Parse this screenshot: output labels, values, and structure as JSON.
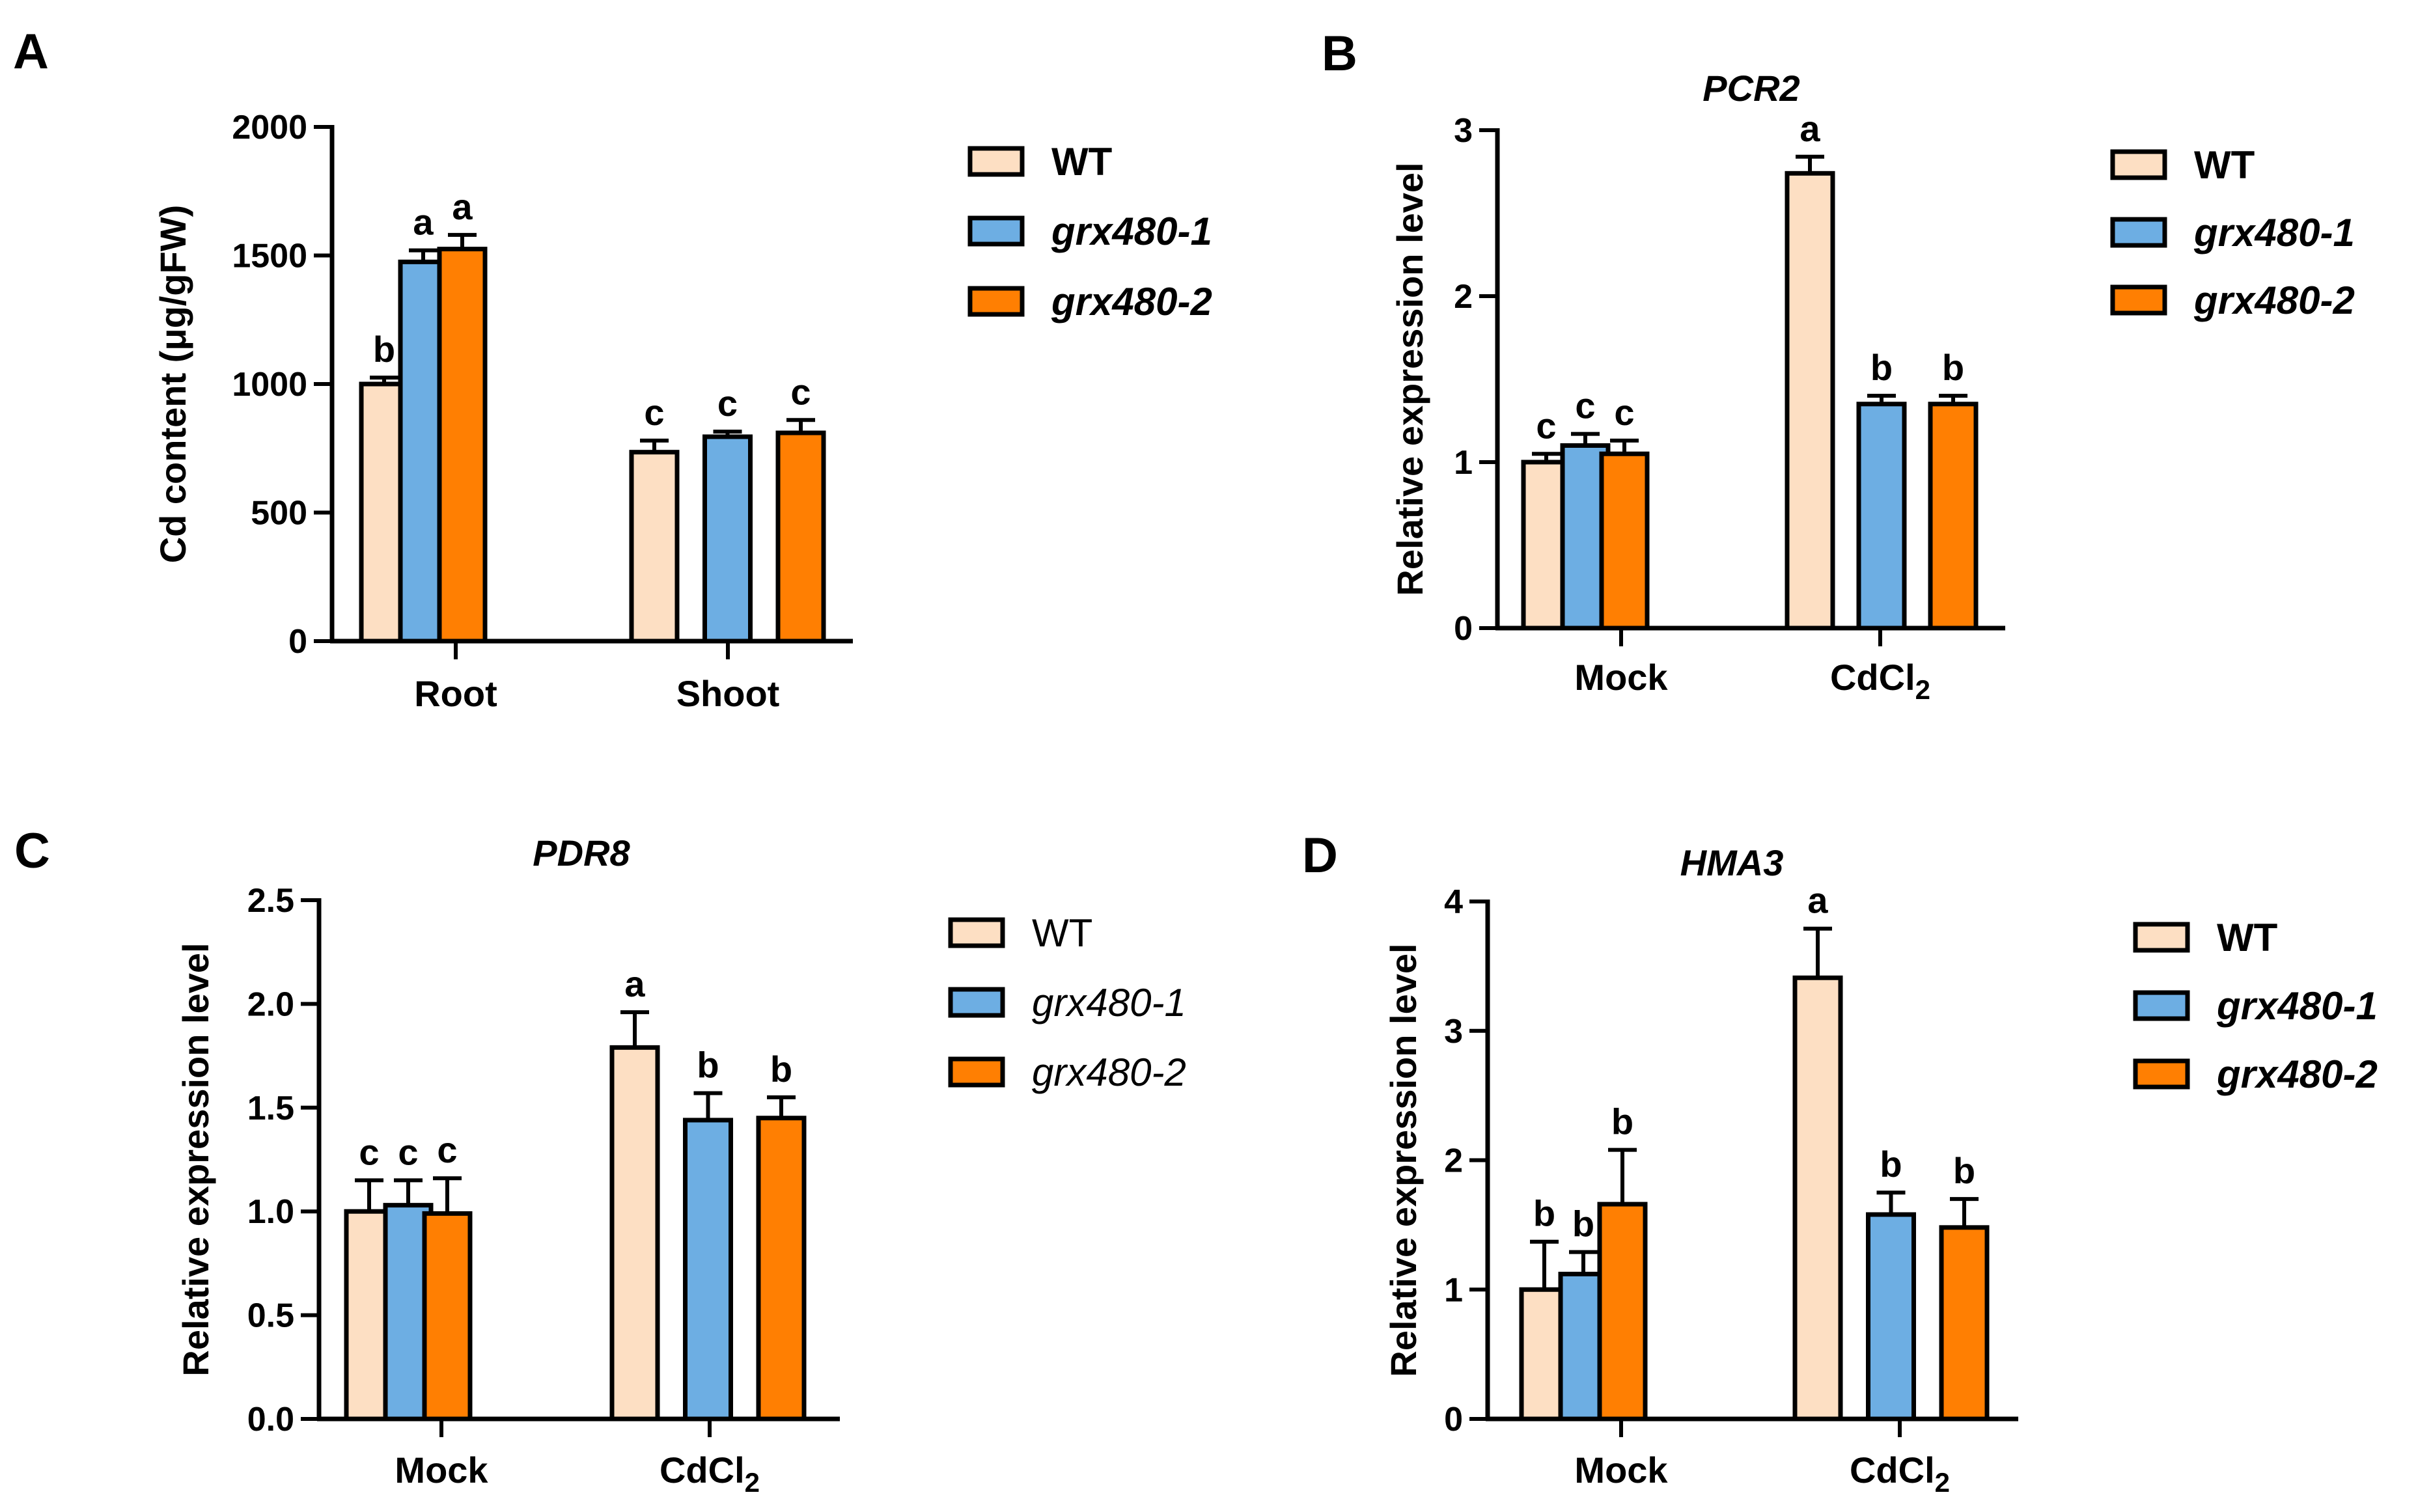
{
  "figure": {
    "panel_letters": [
      "A",
      "B",
      "C",
      "D"
    ]
  },
  "chart_data": [
    {
      "panel": "A",
      "type": "bar",
      "title": "",
      "ylabel": "Cd content (μg/gFW)",
      "xlabel": "",
      "ylim": [
        0,
        2000
      ],
      "yticks": [
        "0",
        "500",
        "1000",
        "1500",
        "2000"
      ],
      "categories": [
        "Root",
        "Shoot"
      ],
      "legend": {
        "position": "right",
        "bold": true,
        "items": [
          "WT",
          "grx480-1",
          "grx480-2"
        ],
        "italic": [
          false,
          true,
          true
        ]
      },
      "series": [
        {
          "name": "WT",
          "color": "#FDDFC3",
          "values": [
            1000,
            735
          ],
          "errors": [
            25,
            45
          ],
          "letters": [
            "b",
            "c"
          ]
        },
        {
          "name": "grx480-1",
          "color": "#6DAEE3",
          "values": [
            1475,
            795
          ],
          "errors": [
            45,
            20
          ],
          "letters": [
            "a",
            "c"
          ]
        },
        {
          "name": "grx480-2",
          "color": "#FF7F02",
          "values": [
            1525,
            810
          ],
          "errors": [
            55,
            50
          ],
          "letters": [
            "a",
            "c"
          ]
        }
      ]
    },
    {
      "panel": "B",
      "type": "bar",
      "title": "PCR2",
      "ylabel": "Relative expression level",
      "xlabel": "",
      "ylim": [
        0,
        3
      ],
      "yticks": [
        "0",
        "1",
        "2",
        "3"
      ],
      "categories": [
        "Mock",
        "CdCl2"
      ],
      "legend": {
        "position": "right",
        "bold": true,
        "items": [
          "WT",
          "grx480-1",
          "grx480-2"
        ],
        "italic": [
          false,
          true,
          true
        ]
      },
      "series": [
        {
          "name": "WT",
          "color": "#FDDFC3",
          "values": [
            1.0,
            2.74
          ],
          "errors": [
            0.05,
            0.1
          ],
          "letters": [
            "c",
            "a"
          ]
        },
        {
          "name": "grx480-1",
          "color": "#6DAEE3",
          "values": [
            1.1,
            1.35
          ],
          "errors": [
            0.07,
            0.05
          ],
          "letters": [
            "c",
            "b"
          ]
        },
        {
          "name": "grx480-2",
          "color": "#FF7F02",
          "values": [
            1.05,
            1.35
          ],
          "errors": [
            0.08,
            0.05
          ],
          "letters": [
            "c",
            "b"
          ]
        }
      ]
    },
    {
      "panel": "C",
      "type": "bar",
      "title": "PDR8",
      "ylabel": "Relative expression level",
      "xlabel": "",
      "ylim": [
        0,
        2.5
      ],
      "yticks": [
        "0.0",
        "0.5",
        "1.0",
        "1.5",
        "2.0",
        "2.5"
      ],
      "categories": [
        "Mock",
        "CdCl2"
      ],
      "legend": {
        "position": "right",
        "bold": false,
        "items": [
          "WT",
          "grx480-1",
          "grx480-2"
        ],
        "italic": [
          false,
          true,
          true
        ]
      },
      "series": [
        {
          "name": "WT",
          "color": "#FDDFC3",
          "values": [
            1.0,
            1.79
          ],
          "errors": [
            0.15,
            0.17
          ],
          "letters": [
            "c",
            "a"
          ]
        },
        {
          "name": "grx480-1",
          "color": "#6DAEE3",
          "values": [
            1.03,
            1.44
          ],
          "errors": [
            0.12,
            0.13
          ],
          "letters": [
            "c",
            "b"
          ]
        },
        {
          "name": "grx480-2",
          "color": "#FF7F02",
          "values": [
            0.99,
            1.45
          ],
          "errors": [
            0.17,
            0.1
          ],
          "letters": [
            "c",
            "b"
          ]
        }
      ]
    },
    {
      "panel": "D",
      "type": "bar",
      "title": "HMA3",
      "ylabel": "Relative expression level",
      "xlabel": "",
      "ylim": [
        0,
        4
      ],
      "yticks": [
        "0",
        "1",
        "2",
        "3",
        "4"
      ],
      "categories": [
        "Mock",
        "CdCl2"
      ],
      "legend": {
        "position": "right",
        "bold": true,
        "items": [
          "WT",
          "grx480-1",
          "grx480-2"
        ],
        "italic": [
          false,
          true,
          true
        ]
      },
      "series": [
        {
          "name": "WT",
          "color": "#FDDFC3",
          "values": [
            1.0,
            3.41
          ],
          "errors": [
            0.37,
            0.38
          ],
          "letters": [
            "b",
            "a"
          ]
        },
        {
          "name": "grx480-1",
          "color": "#6DAEE3",
          "values": [
            1.12,
            1.58
          ],
          "errors": [
            0.17,
            0.17
          ],
          "letters": [
            "b",
            "b"
          ]
        },
        {
          "name": "grx480-2",
          "color": "#FF7F02",
          "values": [
            1.66,
            1.48
          ],
          "errors": [
            0.42,
            0.22
          ],
          "letters": [
            "b",
            "b"
          ]
        }
      ]
    }
  ]
}
